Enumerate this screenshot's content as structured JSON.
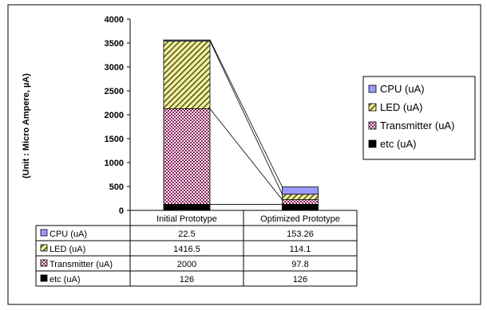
{
  "chart_data": {
    "type": "bar",
    "stacked": true,
    "categories": [
      "Initial Prototype",
      "Optimized Prototype"
    ],
    "series": [
      {
        "name": "etc (uA)",
        "values": [
          126,
          126
        ],
        "color": "#000000",
        "pattern": "solid"
      },
      {
        "name": "Transmitter (uA)",
        "values": [
          2000,
          97.8
        ],
        "color": "#8b1a5a",
        "pattern": "checker"
      },
      {
        "name": "LED (uA)",
        "values": [
          1416.5,
          114.1
        ],
        "color": "#f2f2a0",
        "pattern": "diagonal"
      },
      {
        "name": "CPU (uA)",
        "values": [
          22.5,
          153.26
        ],
        "color": "#9999ff",
        "pattern": "solid"
      }
    ],
    "table_rows": [
      {
        "label": "CPU (uA)",
        "values": [
          "22.5",
          "153.26"
        ]
      },
      {
        "label": "LED (uA)",
        "values": [
          "1416.5",
          "114.1"
        ]
      },
      {
        "label": "Transmitter (uA)",
        "values": [
          "2000",
          "97.8"
        ]
      },
      {
        "label": "etc (uA)",
        "values": [
          "126",
          "126"
        ]
      }
    ],
    "legend": [
      "CPU (uA)",
      "LED (uA)",
      "Transmitter (uA)",
      "etc (uA)"
    ],
    "legend_position": "right",
    "ylabel": "(Unit : Micro Ampere, µA)",
    "ylim": [
      0,
      4000
    ],
    "yticks": [
      0,
      500,
      1000,
      1500,
      2000,
      2500,
      3000,
      3500,
      4000
    ],
    "grid": false,
    "series_lines": true
  }
}
